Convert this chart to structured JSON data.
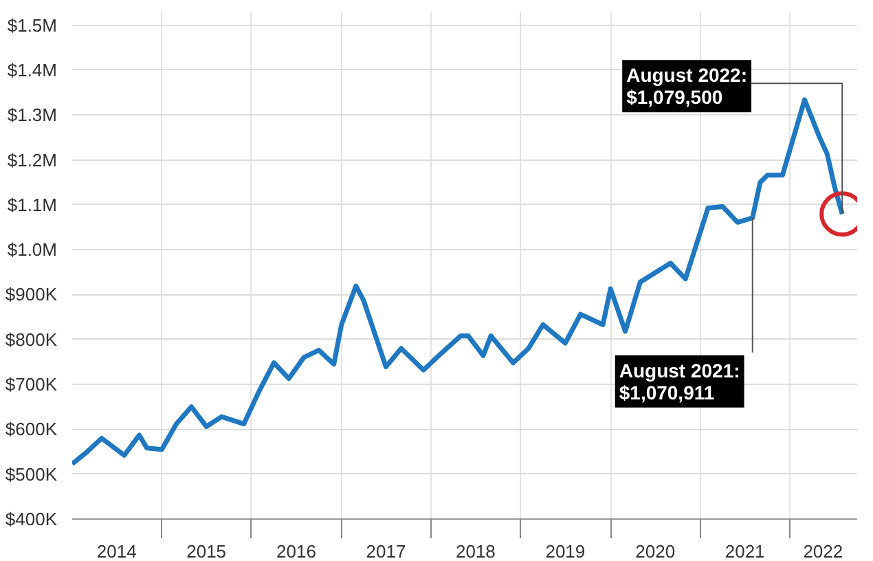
{
  "chart_data": {
    "type": "line",
    "x": [
      "2014-01",
      "2014-03",
      "2014-05",
      "2014-08",
      "2014-10",
      "2014-11",
      "2015-01",
      "2015-03",
      "2015-05",
      "2015-07",
      "2015-09",
      "2015-12",
      "2016-02",
      "2016-04",
      "2016-06",
      "2016-08",
      "2016-10",
      "2016-12",
      "2017-01",
      "2017-03",
      "2017-04",
      "2017-07",
      "2017-09",
      "2017-12",
      "2018-02",
      "2018-05",
      "2018-06",
      "2018-08",
      "2018-09",
      "2018-12",
      "2019-02",
      "2019-04",
      "2019-07",
      "2019-09",
      "2019-12",
      "2020-01",
      "2020-03",
      "2020-05",
      "2020-09",
      "2020-11",
      "2021-02",
      "2021-04",
      "2021-06",
      "2021-08",
      "2021-09",
      "2021-10",
      "2021-12",
      "2022-03",
      "2022-05",
      "2022-06",
      "2022-07",
      "2022-08"
    ],
    "series": [
      {
        "type": "line",
        "color": "#1f78c1",
        "marker": "none",
        "line_style": "solid",
        "values": [
          523000,
          549000,
          580000,
          542000,
          587000,
          558000,
          555000,
          612000,
          650000,
          606000,
          628000,
          612000,
          685000,
          748000,
          713000,
          760000,
          776000,
          745000,
          833000,
          919000,
          887000,
          739000,
          780000,
          732000,
          764000,
          808000,
          808000,
          764000,
          808000,
          748000,
          780000,
          833000,
          792000,
          856000,
          833000,
          913000,
          818000,
          928000,
          970000,
          935000,
          1093000,
          1096000,
          1061000,
          1070911,
          1150000,
          1166000,
          1166000,
          1334000,
          1250000,
          1213000,
          1140000,
          1079500
        ]
      },
      {
        "type": "scatter",
        "color": "#d9262c",
        "marker": "circle",
        "x": [
          "2022-08"
        ],
        "values": [
          1079500
        ]
      }
    ],
    "xlim": [
      "2014-01-01",
      "2022-10-01"
    ],
    "xticks": [
      {
        "value": "2014-07-01",
        "label": "2014"
      },
      {
        "value": "2015-01-01",
        "label": null
      },
      {
        "value": "2015-07-01",
        "label": "2015"
      },
      {
        "value": "2016-01-01",
        "label": null
      },
      {
        "value": "2016-07-01",
        "label": "2016"
      },
      {
        "value": "2017-01-01",
        "label": null
      },
      {
        "value": "2017-07-01",
        "label": "2017"
      },
      {
        "value": "2018-01-01",
        "label": null
      },
      {
        "value": "2018-07-01",
        "label": "2018"
      },
      {
        "value": "2019-01-01",
        "label": null
      },
      {
        "value": "2019-07-01",
        "label": "2019"
      },
      {
        "value": "2020-01-01",
        "label": null
      },
      {
        "value": "2020-07-01",
        "label": "2020"
      },
      {
        "value": "2021-01-01",
        "label": null
      },
      {
        "value": "2021-07-01",
        "label": "2021"
      },
      {
        "value": "2022-01-01",
        "label": null
      },
      {
        "value": "2022-05-15",
        "label": "2022"
      }
    ],
    "ylim": [
      400000,
      1530000
    ],
    "yticks": [
      {
        "value": 400000,
        "label": "$400K"
      },
      {
        "value": 500000,
        "label": "$500K"
      },
      {
        "value": 600000,
        "label": "$600K"
      },
      {
        "value": 700000,
        "label": "$700K"
      },
      {
        "value": 800000,
        "label": "$800K"
      },
      {
        "value": 900000,
        "label": "$900K"
      },
      {
        "value": 1000000,
        "label": "$1.0M"
      },
      {
        "value": 1100000,
        "label": "$1.1M"
      },
      {
        "value": 1200000,
        "label": "$1.2M"
      },
      {
        "value": 1300000,
        "label": "$1.3M"
      },
      {
        "value": 1400000,
        "label": "$1.4M"
      },
      {
        "value": 1500000,
        "label": "$1.5M"
      }
    ],
    "grid": true,
    "annotations": [
      {
        "text": "August 2022:\n$1,079,500",
        "x": "2022-08",
        "y": 1079500
      },
      {
        "text": "August 2021:\n$1,070,911",
        "x": "2021-08",
        "y": 1070911
      }
    ]
  }
}
